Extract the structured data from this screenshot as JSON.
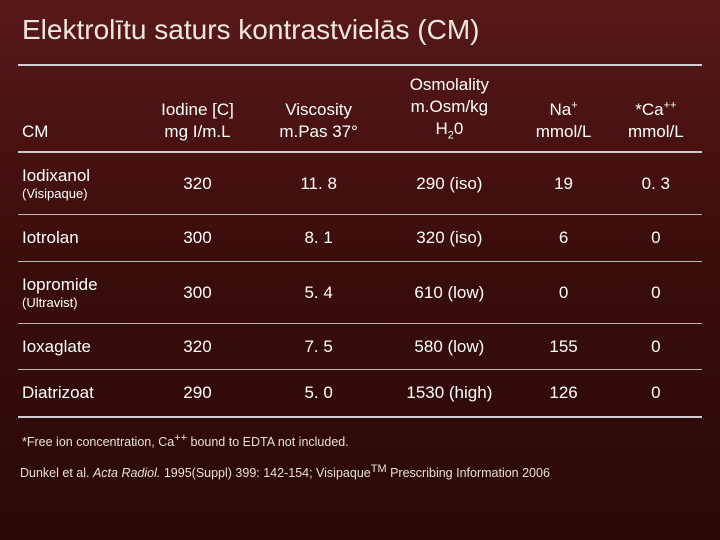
{
  "title": "Elektrolītu saturs kontrastvielās (CM)",
  "headers": {
    "c0": "CM",
    "c1a": "Iodine [C]",
    "c1b": "mg I/m.L",
    "c2a": "Viscosity",
    "c2b": "m.Pas 37°",
    "c3a": "Osmolality",
    "c3b": "m.Osm/kg",
    "c3c_pre": "H",
    "c3c_sub": "2",
    "c3c_post": "0",
    "c4a_pre": "Na",
    "c4a_sup": "+",
    "c4b": "mmol/L",
    "c5a_pre": "*Ca",
    "c5a_sup": "++",
    "c5b": "mmol/L"
  },
  "rows": [
    {
      "name": "Iodixanol",
      "sub": "(Visipaque)",
      "iodine": "320",
      "visc": "11. 8",
      "osm": "290 (iso)",
      "na": "19",
      "ca": "0. 3"
    },
    {
      "name": "Iotrolan",
      "sub": "",
      "iodine": "300",
      "visc": "8. 1",
      "osm": "320 (iso)",
      "na": "6",
      "ca": "0"
    },
    {
      "name": "Iopromide",
      "sub": "(Ultravist)",
      "iodine": "300",
      "visc": "5. 4",
      "osm": "610 (low)",
      "na": "0",
      "ca": "0"
    },
    {
      "name": "Ioxaglate",
      "sub": "",
      "iodine": "320",
      "visc": "7. 5",
      "osm": "580 (low)",
      "na": "155",
      "ca": "0"
    },
    {
      "name": "Diatrizoat",
      "sub": "",
      "iodine": "290",
      "visc": "5. 0",
      "osm": "1530 (high)",
      "na": "126",
      "ca": "0"
    }
  ],
  "footnote_pre": "*Free ion concentration, Ca",
  "footnote_sup": "++",
  "footnote_post": " bound to EDTA not included.",
  "citation_a": "Dunkel et al. ",
  "citation_ital": "Acta Radiol.",
  "citation_b": " 1995(Suppl) 399: 142-154; Visipaque",
  "citation_tm": "TM",
  "citation_c": " Prescribing Information 2006"
}
